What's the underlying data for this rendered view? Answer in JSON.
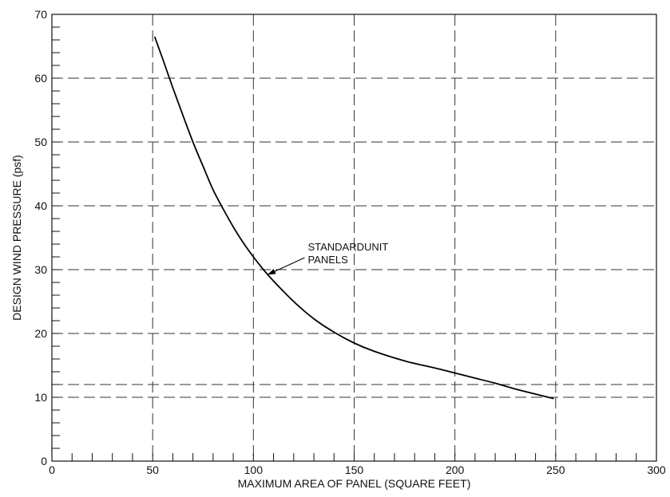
{
  "chart_data": {
    "type": "line",
    "title": "",
    "xlabel": "MAXIMUM AREA OF PANEL (SQUARE FEET)",
    "ylabel": "DESIGN WIND PRESSURE (psf)",
    "xlim": [
      0,
      300
    ],
    "ylim": [
      0,
      70
    ],
    "x_major_ticks": [
      0,
      50,
      100,
      150,
      200,
      250,
      300
    ],
    "y_major_ticks": [
      0,
      10,
      20,
      30,
      40,
      50,
      60,
      70
    ],
    "x_tick_labels": [
      "0",
      "50",
      "100",
      "150",
      "200",
      "250",
      "300"
    ],
    "y_tick_labels": [
      "0",
      "10",
      "20",
      "30",
      "40",
      "50",
      "60",
      "70"
    ],
    "x_minor_step": 10,
    "y_minor_step": 2,
    "grid": true,
    "grid_style": "dashed",
    "extra_reference_lines": [
      {
        "axis": "y",
        "value": 12
      }
    ],
    "series": [
      {
        "x": [
          51,
          55,
          60,
          65,
          70,
          75,
          80,
          85,
          90,
          95,
          100,
          105,
          110,
          120,
          130,
          140,
          150,
          160,
          175,
          190,
          200,
          210,
          220,
          230,
          240,
          249
        ],
        "y": [
          66.5,
          63.0,
          58.5,
          54.2,
          50.0,
          46.2,
          42.5,
          39.5,
          36.7,
          34.2,
          32.0,
          30.0,
          28.2,
          25.0,
          22.3,
          20.2,
          18.5,
          17.2,
          15.7,
          14.6,
          13.8,
          13.0,
          12.2,
          11.3,
          10.5,
          9.8
        ]
      }
    ],
    "annotations": [
      {
        "lines": [
          "STANDARDUNIT",
          "PANELS"
        ],
        "text_anchor": {
          "x": 127,
          "y": 33
        },
        "arrow_tip": {
          "x": 107,
          "y": 29.2
        }
      }
    ]
  }
}
